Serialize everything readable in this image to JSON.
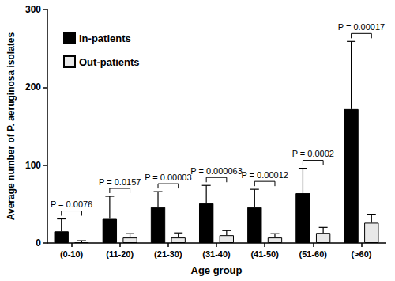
{
  "chart_data": {
    "type": "bar",
    "categories": [
      "(0-10)",
      "(11-20)",
      "(21-30)",
      "(31-40)",
      "(41-50)",
      "(51-60)",
      "(>60)"
    ],
    "series": [
      {
        "name": "In-patients",
        "color": "#000000",
        "values": [
          15,
          31,
          46,
          51,
          46,
          64,
          172
        ],
        "errors": [
          16,
          29,
          20,
          23,
          23,
          32,
          87
        ]
      },
      {
        "name": "Out-patients",
        "color": "#e8e8e8",
        "values": [
          1,
          7,
          7,
          10,
          7,
          13,
          26
        ],
        "errors": [
          2,
          5,
          6,
          6,
          5,
          7,
          11
        ]
      }
    ],
    "annotations": [
      "P = 0.0076",
      "P = 0.0157",
      "P = 0.00003",
      "P = 0.000063",
      "P = 0.00012",
      "P = 0.0002",
      "P = 0.00017"
    ],
    "xlabel": "Age group",
    "ylabel": "Average number of P. aeruginosa isolates",
    "ylim": [
      0,
      300
    ],
    "yticks": [
      0,
      100,
      200,
      300
    ],
    "grid": false,
    "legend": "upper left"
  }
}
